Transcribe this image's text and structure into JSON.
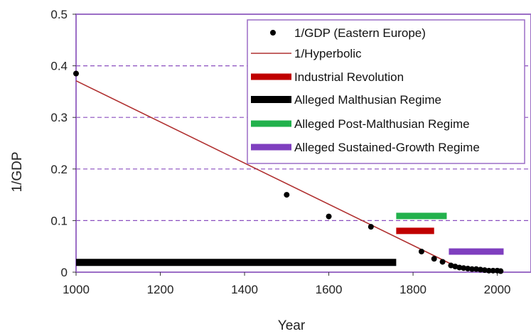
{
  "chart_data": {
    "type": "scatter",
    "xlabel": "Year",
    "ylabel": "1/GDP",
    "xlim": [
      1000,
      2080
    ],
    "ylim": [
      0,
      0.5
    ],
    "x_ticks": [
      "1000",
      "1200",
      "1400",
      "1600",
      "1800",
      "2000"
    ],
    "y_ticks": [
      "0",
      "0.1",
      "0.2",
      "0.3",
      "0.4",
      "0.5"
    ],
    "grid": "horizontal dashed",
    "legend_position": "top-right",
    "colors": {
      "frame": "#9b6dc6",
      "grid": "#8a4fbf",
      "points": "#000000",
      "hyperbolic": "#b03030",
      "industrial": "#c00000",
      "malthusian": "#000000",
      "post_malthusian": "#22b14c",
      "sustained": "#7f3fbf"
    },
    "series": [
      {
        "name": "1/GDP (Eastern Europe)",
        "kind": "points",
        "x": [
          1000,
          1500,
          1600,
          1700,
          1820,
          1850,
          1870,
          1890,
          1900,
          1910,
          1920,
          1930,
          1940,
          1950,
          1960,
          1970,
          1980,
          1990,
          2000,
          2008
        ],
        "y": [
          0.385,
          0.15,
          0.108,
          0.088,
          0.04,
          0.026,
          0.02,
          0.013,
          0.011,
          0.009,
          0.008,
          0.007,
          0.006,
          0.006,
          0.005,
          0.004,
          0.003,
          0.003,
          0.003,
          0.002
        ]
      },
      {
        "name": "1/Hyperbolic",
        "kind": "line",
        "x": [
          1000,
          1900,
          1920,
          1960,
          2008
        ],
        "y": [
          0.371,
          0.012,
          0.008,
          0.004,
          0.002
        ]
      },
      {
        "name": "Industrial Revolution",
        "kind": "span",
        "x": [
          1760,
          1850
        ],
        "y": 0.08
      },
      {
        "name": "Alleged Malthusian Regime",
        "kind": "span",
        "x": [
          1000,
          1760
        ],
        "y": 0.019
      },
      {
        "name": "Alleged Post-Malthusian Regime",
        "kind": "span",
        "x": [
          1760,
          1880
        ],
        "y": 0.109
      },
      {
        "name": "Alleged Sustained-Growth Regime",
        "kind": "span",
        "x": [
          1885,
          2015
        ],
        "y": 0.04
      }
    ]
  }
}
